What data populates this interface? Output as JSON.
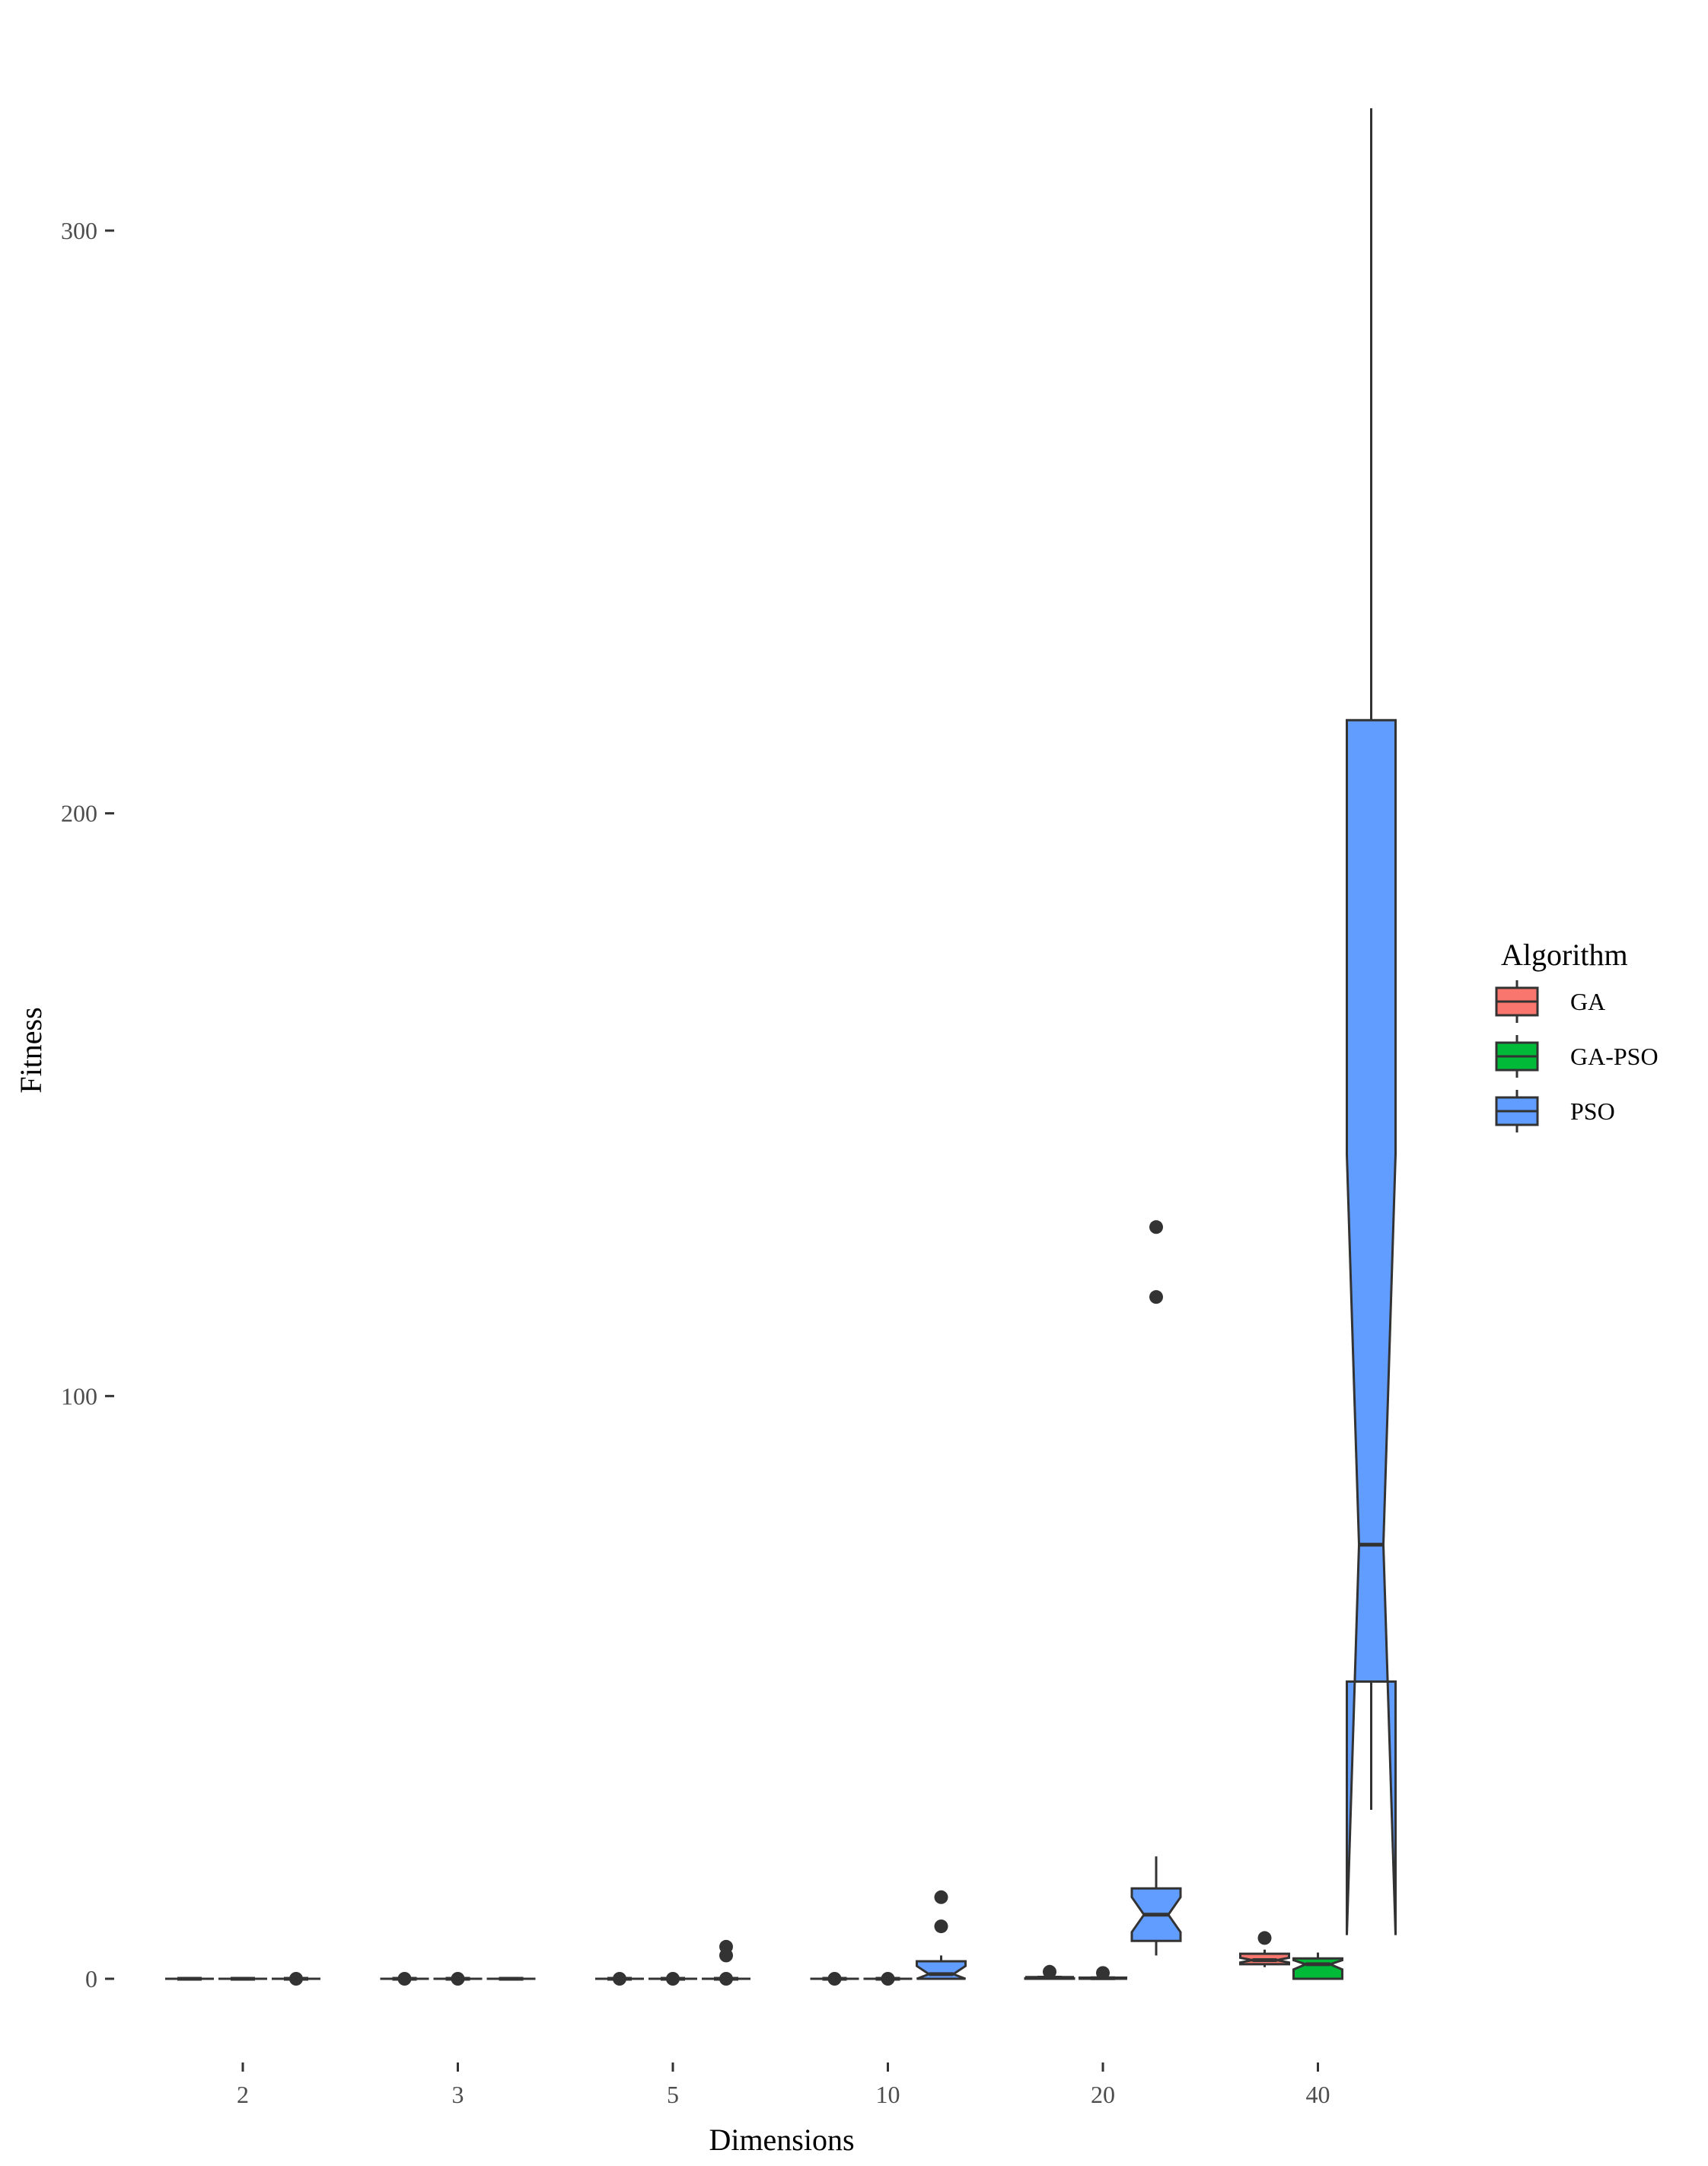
{
  "chart_data": {
    "type": "boxplot",
    "notched": true,
    "xlabel": "Dimensions",
    "ylabel": "Fitness",
    "categories": [
      "2",
      "3",
      "5",
      "10",
      "20",
      "40"
    ],
    "yticks": [
      0,
      100,
      200,
      300
    ],
    "ylim": [
      -13,
      325
    ],
    "grid": false,
    "legend": {
      "title": "Algorithm",
      "position": "right"
    },
    "series": [
      {
        "name": "GA",
        "color": "#F8766D",
        "boxes": [
          {
            "category": "2",
            "min": 0,
            "q1": 0,
            "median": 0,
            "q3": 0,
            "max": 0,
            "notch_low": 0,
            "notch_high": 0,
            "outliers": []
          },
          {
            "category": "3",
            "min": 0,
            "q1": 0,
            "median": 0,
            "q3": 0,
            "max": 0,
            "notch_low": 0,
            "notch_high": 0,
            "outliers": [
              0
            ]
          },
          {
            "category": "5",
            "min": 0,
            "q1": 0,
            "median": 0,
            "q3": 0,
            "max": 0,
            "notch_low": 0,
            "notch_high": 0,
            "outliers": [
              0
            ]
          },
          {
            "category": "10",
            "min": 0,
            "q1": 0,
            "median": 0,
            "q3": 0,
            "max": 0,
            "notch_low": 0,
            "notch_high": 0,
            "outliers": [
              0
            ]
          },
          {
            "category": "20",
            "min": 0,
            "q1": 0,
            "median": 0.2,
            "q3": 0.3,
            "max": 0.5,
            "notch_low": 0.1,
            "notch_high": 0.3,
            "outliers": [
              1.2
            ]
          },
          {
            "category": "40",
            "min": 2,
            "q1": 2.5,
            "median": 3.2,
            "q3": 4.3,
            "max": 5,
            "notch_low": 2.8,
            "notch_high": 3.6,
            "outliers": [
              7
            ]
          }
        ]
      },
      {
        "name": "GA-PSO",
        "color": "#00BA38",
        "boxes": [
          {
            "category": "2",
            "min": 0,
            "q1": 0,
            "median": 0,
            "q3": 0,
            "max": 0,
            "notch_low": 0,
            "notch_high": 0,
            "outliers": []
          },
          {
            "category": "3",
            "min": 0,
            "q1": 0,
            "median": 0,
            "q3": 0,
            "max": 0,
            "notch_low": 0,
            "notch_high": 0,
            "outliers": [
              0
            ]
          },
          {
            "category": "5",
            "min": 0,
            "q1": 0,
            "median": 0,
            "q3": 0,
            "max": 0,
            "notch_low": 0,
            "notch_high": 0,
            "outliers": [
              0
            ]
          },
          {
            "category": "10",
            "min": 0,
            "q1": 0,
            "median": 0,
            "q3": 0,
            "max": 0,
            "notch_low": 0,
            "notch_high": 0,
            "outliers": [
              0
            ]
          },
          {
            "category": "20",
            "min": 0,
            "q1": 0,
            "median": 0.1,
            "q3": 0.2,
            "max": 0.3,
            "notch_low": 0,
            "notch_high": 0.2,
            "outliers": [
              1
            ]
          },
          {
            "category": "40",
            "min": 0,
            "q1": 0,
            "median": 2.5,
            "q3": 3.5,
            "max": 4.5,
            "notch_low": 1.6,
            "notch_high": 3.2,
            "outliers": []
          }
        ]
      },
      {
        "name": "PSO",
        "color": "#619CFF",
        "boxes": [
          {
            "category": "2",
            "min": 0,
            "q1": 0,
            "median": 0,
            "q3": 0,
            "max": 0,
            "notch_low": 0,
            "notch_high": 0,
            "outliers": [
              0
            ]
          },
          {
            "category": "3",
            "min": 0,
            "q1": 0,
            "median": 0,
            "q3": 0,
            "max": 0,
            "notch_low": 0,
            "notch_high": 0,
            "outliers": []
          },
          {
            "category": "5",
            "min": 0,
            "q1": 0,
            "median": 0,
            "q3": 0,
            "max": 0,
            "notch_low": 0,
            "notch_high": 0,
            "outliers": [
              0,
              4,
              5.5
            ]
          },
          {
            "category": "10",
            "min": 0,
            "q1": 0,
            "median": 0.8,
            "q3": 3,
            "max": 4,
            "notch_low": 0,
            "notch_high": 2.2,
            "outliers": [
              9,
              14
            ]
          },
          {
            "category": "20",
            "min": 4,
            "q1": 6.5,
            "median": 11,
            "q3": 15.5,
            "max": 21,
            "notch_low": 8,
            "notch_high": 14,
            "outliers": [
              117,
              129
            ]
          },
          {
            "category": "40",
            "min": 29,
            "q1": 51,
            "median": 74.5,
            "q3": 216,
            "max": 321,
            "notch_low": 7.5,
            "notch_high": 141.5,
            "outliers": []
          }
        ]
      }
    ]
  }
}
